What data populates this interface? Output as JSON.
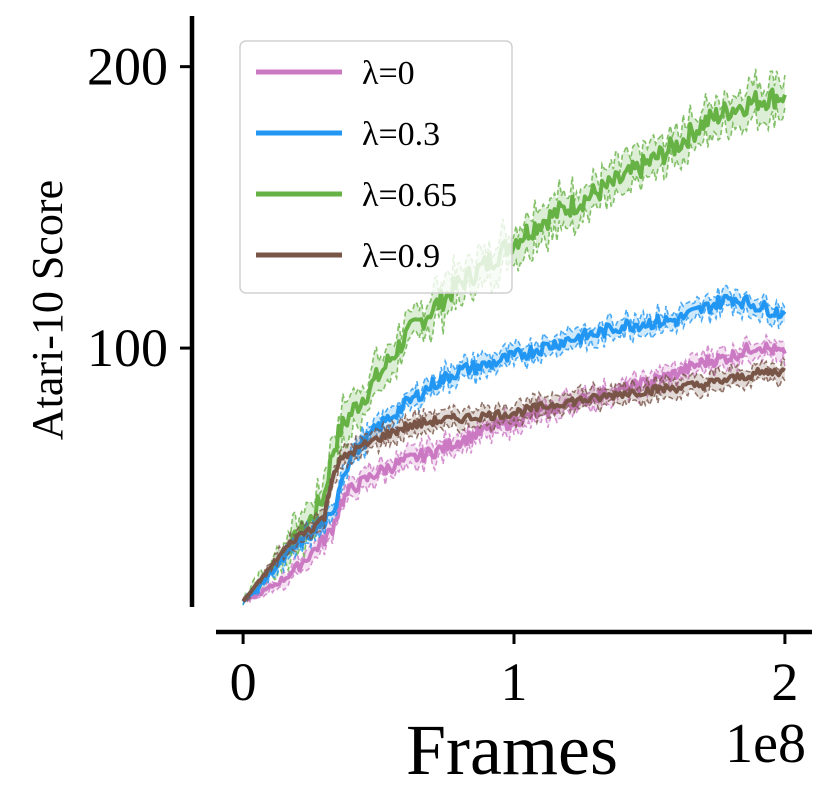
{
  "chart_data": {
    "type": "line",
    "xlabel": "Frames",
    "ylabel": "Atari-10 Score",
    "x_offset_label": "1e8",
    "xlim": [
      -0.1,
      2.1
    ],
    "ylim": [
      8,
      218
    ],
    "x_ticks": [
      0,
      1,
      2
    ],
    "x_tick_labels": [
      "0",
      "1",
      "2"
    ],
    "y_ticks": [
      100,
      200
    ],
    "y_tick_labels": [
      "100",
      "200"
    ],
    "grid": false,
    "legend_position": "top-left",
    "x": [
      0,
      0.05,
      0.1,
      0.15,
      0.2,
      0.25,
      0.3,
      0.33,
      0.36,
      0.4,
      0.5,
      0.6,
      0.7,
      0.8,
      0.9,
      1.0,
      1.1,
      1.2,
      1.3,
      1.4,
      1.5,
      1.6,
      1.7,
      1.8,
      1.9,
      2.0
    ],
    "series": [
      {
        "name": "λ=0",
        "color": "#cc79c4",
        "values": [
          10,
          12,
          15,
          18,
          22,
          27,
          32,
          36,
          45,
          50,
          56,
          60,
          63,
          67,
          71,
          74,
          77,
          80,
          83,
          85,
          88,
          91,
          95,
          97,
          101,
          98
        ]
      },
      {
        "name": "λ=0.3",
        "color": "#2196f3",
        "values": [
          10,
          14,
          20,
          25,
          30,
          34,
          38,
          40,
          53,
          62,
          72,
          80,
          87,
          92,
          94,
          97,
          100,
          103,
          105,
          108,
          109,
          110,
          114,
          118,
          115,
          112
        ]
      },
      {
        "name": "λ=0.65",
        "color": "#66b245",
        "values": [
          10,
          15,
          21,
          27,
          33,
          39,
          48,
          63,
          71,
          77,
          90,
          104,
          114,
          123,
          130,
          138,
          145,
          150,
          155,
          160,
          166,
          172,
          180,
          185,
          188,
          190
        ]
      },
      {
        "name": "λ=0.9",
        "color": "#795548",
        "values": [
          10,
          16,
          22,
          28,
          33,
          36,
          40,
          55,
          60,
          63,
          68,
          72,
          74,
          75,
          76,
          77,
          79,
          81,
          82,
          84,
          85,
          86,
          87,
          89,
          91,
          92
        ]
      }
    ]
  }
}
